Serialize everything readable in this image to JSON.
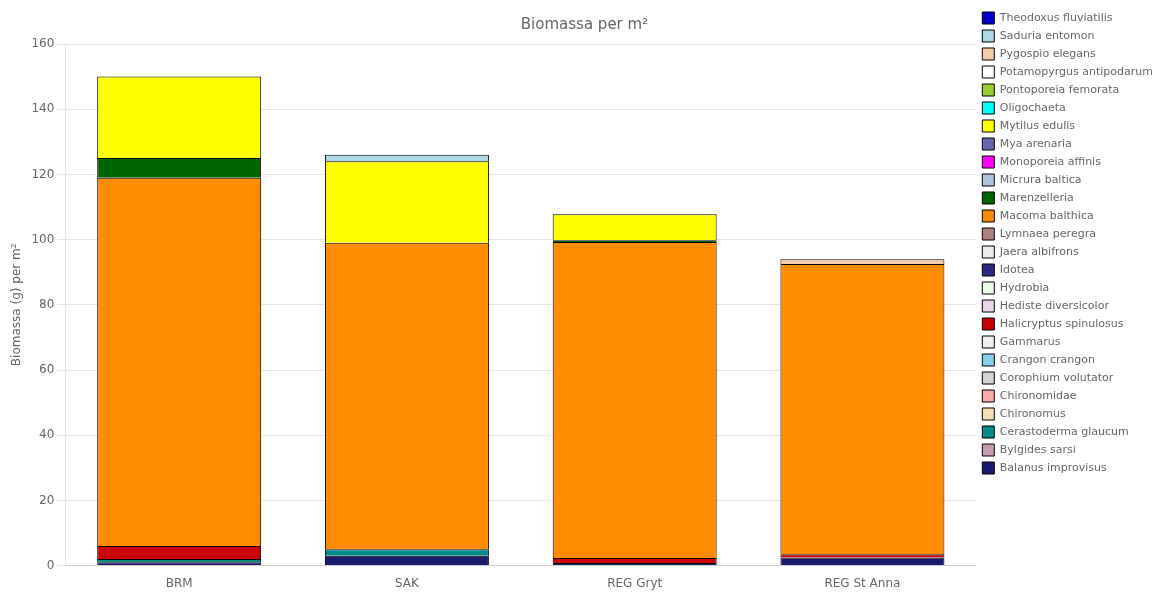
{
  "chart_data": {
    "type": "bar",
    "stacked": true,
    "title": "Biomassa per m²",
    "ylabel": "Biomassa (g) per m²",
    "categories": [
      "BRM",
      "SAK",
      "REG Gryt",
      "REG St Anna"
    ],
    "ylim": [
      0,
      160
    ],
    "yticks": [
      0,
      20,
      40,
      60,
      80,
      100,
      120,
      140,
      160
    ],
    "grid": true,
    "legend": "right",
    "series": [
      {
        "name": "Theodoxus fluviatilis",
        "color": "#0000cd",
        "values": [
          0.0,
          0.0,
          0.0,
          0.0
        ]
      },
      {
        "name": "Saduria entomon",
        "color": "#add8e6",
        "values": [
          0.0,
          2.0,
          0.0,
          0.0
        ]
      },
      {
        "name": "Pygospio elegans",
        "color": "#f5cba7",
        "values": [
          0.0,
          0.0,
          0.0,
          1.5
        ]
      },
      {
        "name": "Potamopyrgus antipodarum",
        "color": "#ffffff",
        "values": [
          0.0,
          0.0,
          0.0,
          0.0
        ]
      },
      {
        "name": "Pontoporeia femorata",
        "color": "#9acd32",
        "values": [
          0.0,
          0.0,
          0.0,
          0.0
        ]
      },
      {
        "name": "Oligochaeta",
        "color": "#00ffff",
        "values": [
          0.0,
          0.0,
          0.0,
          0.0
        ]
      },
      {
        "name": "Mytilus edulis",
        "color": "#ffff00",
        "values": [
          25.0,
          25.0,
          8.0,
          0.0
        ]
      },
      {
        "name": "Mya arenaria",
        "color": "#6666aa",
        "values": [
          0.0,
          0.0,
          0.0,
          0.0
        ]
      },
      {
        "name": "Monoporeia affinis",
        "color": "#ff00ff",
        "values": [
          0.0,
          0.0,
          0.0,
          0.0
        ]
      },
      {
        "name": "Micrura baltica",
        "color": "#b0c4de",
        "values": [
          0.0,
          0.0,
          0.0,
          0.0
        ]
      },
      {
        "name": "Marenzelleria",
        "color": "#006400",
        "values": [
          6.0,
          0.0,
          0.5,
          0.0
        ]
      },
      {
        "name": "Macoma balthica",
        "color": "#ff8c00",
        "values": [
          113.0,
          94.0,
          97.0,
          89.0
        ]
      },
      {
        "name": "Lymnaea peregra",
        "color": "#b08080",
        "values": [
          0.0,
          0.0,
          0.0,
          0.0
        ]
      },
      {
        "name": "Jaera albifrons",
        "color": "#eeeeee",
        "values": [
          0.0,
          0.0,
          0.0,
          0.0
        ]
      },
      {
        "name": "Idotea",
        "color": "#2a2a80",
        "values": [
          0.0,
          0.0,
          0.0,
          0.0
        ]
      },
      {
        "name": "Hydrobia",
        "color": "#e8ffe8",
        "values": [
          0.0,
          0.0,
          0.0,
          0.0
        ]
      },
      {
        "name": "Hediste diversicolor",
        "color": "#e8d5e8",
        "values": [
          0.0,
          0.0,
          0.0,
          0.0
        ]
      },
      {
        "name": "Halicryptus spinulosus",
        "color": "#cc0000",
        "values": [
          4.0,
          0.0,
          1.5,
          1.0
        ]
      },
      {
        "name": "Gammarus",
        "color": "#f0f0f0",
        "values": [
          0.0,
          0.0,
          0.0,
          0.0
        ]
      },
      {
        "name": "Crangon crangon",
        "color": "#87ceeb",
        "values": [
          0.0,
          0.0,
          0.0,
          0.0
        ]
      },
      {
        "name": "Corophium volutator",
        "color": "#d3d3d3",
        "values": [
          0.0,
          0.0,
          0.0,
          0.0
        ]
      },
      {
        "name": "Chironomidae",
        "color": "#ffaaaa",
        "values": [
          0.0,
          0.0,
          0.0,
          0.0
        ]
      },
      {
        "name": "Chironomus",
        "color": "#f5deb3",
        "values": [
          0.0,
          0.0,
          0.0,
          0.0
        ]
      },
      {
        "name": "Cerastoderma glaucum",
        "color": "#008b8b",
        "values": [
          1.0,
          2.0,
          0.0,
          0.0
        ]
      },
      {
        "name": "Bylgides sarsi",
        "color": "#c89ab0",
        "values": [
          0.0,
          0.0,
          0.0,
          0.0
        ]
      },
      {
        "name": "Balanus improvisus",
        "color": "#1a1a6e",
        "values": [
          1.0,
          3.0,
          0.8,
          2.5
        ]
      }
    ]
  }
}
